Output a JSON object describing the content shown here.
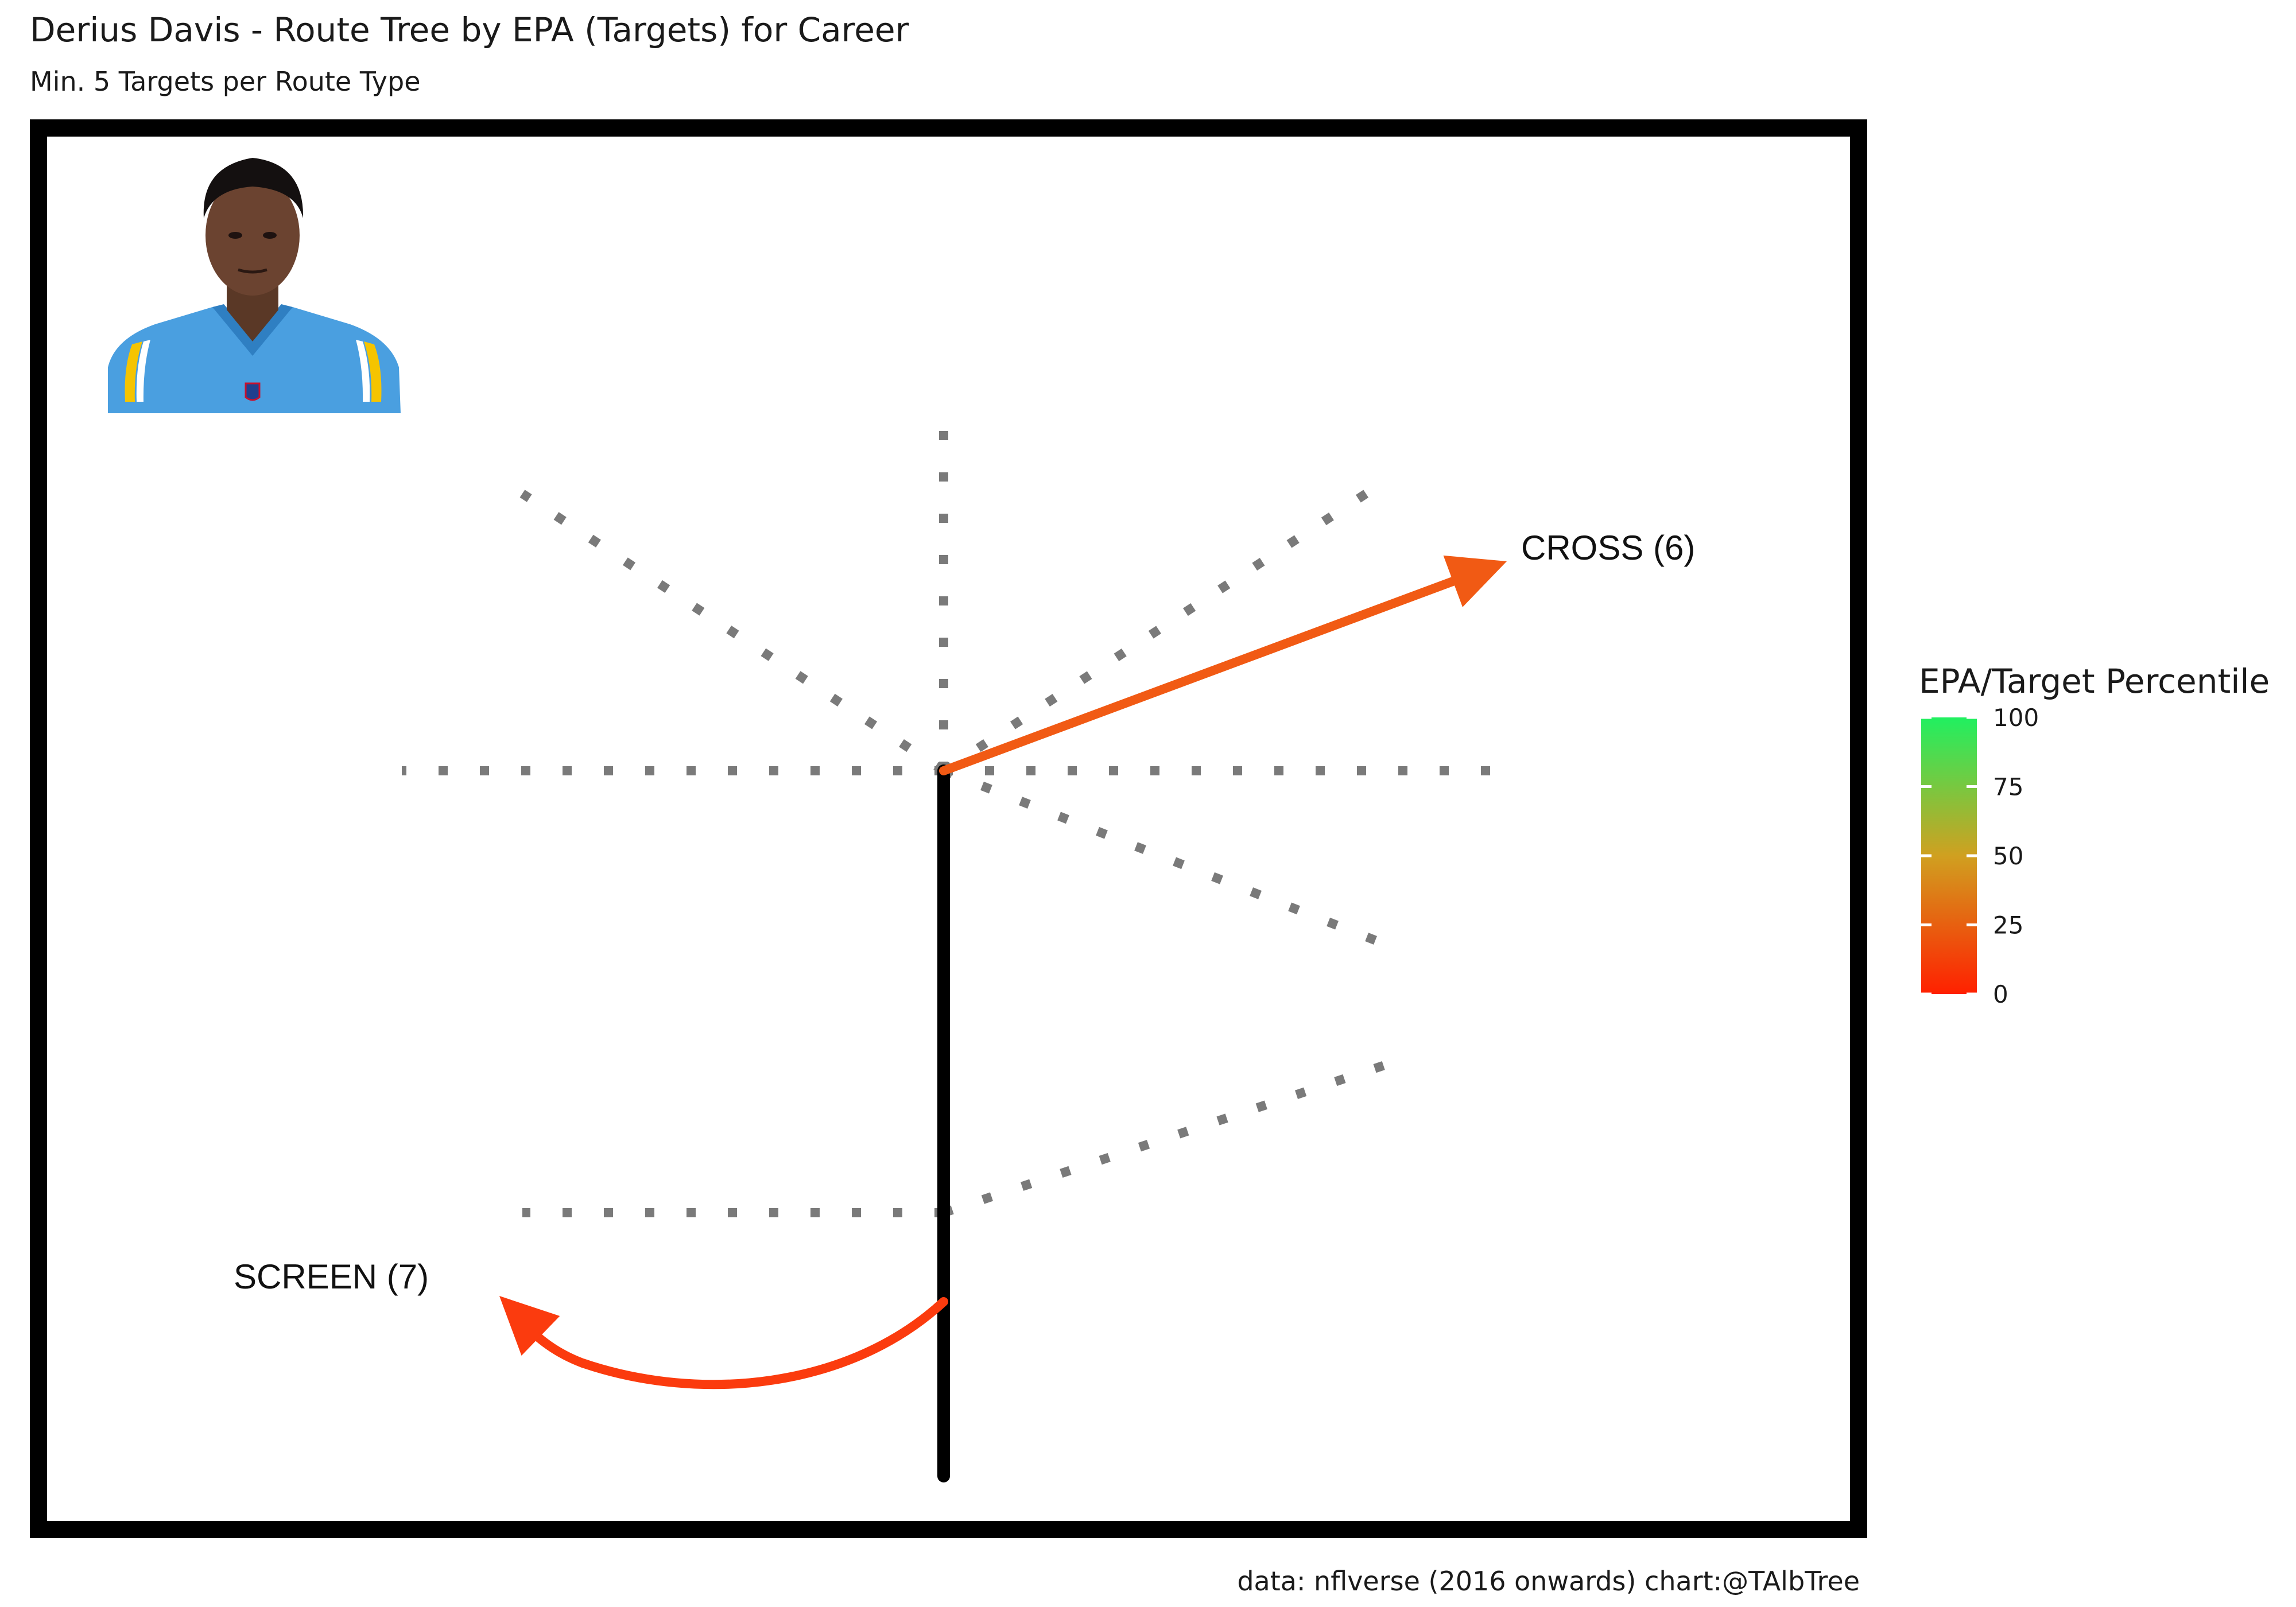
{
  "chart_data": {
    "type": "route-tree",
    "title": "Derius Davis - Route Tree by EPA (Targets) for Career",
    "subtitle": "Min. 5 Targets per Route Type",
    "caption": "data: nflverse (2016 onwards)  chart:@TAlbTree",
    "player": {
      "name": "Derius Davis",
      "jersey_color": "#4a9fe0",
      "trim_color": "#f5c400"
    },
    "routes": [
      {
        "label": "CROSS (6)",
        "route": "CROSS",
        "targets": 6,
        "epa_percentile": 22,
        "color": "#f15a14"
      },
      {
        "label": "SCREEN (7)",
        "route": "SCREEN",
        "targets": 7,
        "epa_percentile": 12,
        "color": "#fb3b0e"
      }
    ],
    "legend": {
      "title": "EPA/Target Percentile",
      "ticks": [
        0,
        25,
        50,
        75,
        100
      ],
      "range": [
        0,
        100
      ],
      "color_low": "#ff2000",
      "color_mid": "#d0a020",
      "color_high": "#20f060"
    },
    "colors": {
      "tree_guides": "#7a7a7a",
      "stem": "#000000",
      "frame": "#000000"
    }
  }
}
